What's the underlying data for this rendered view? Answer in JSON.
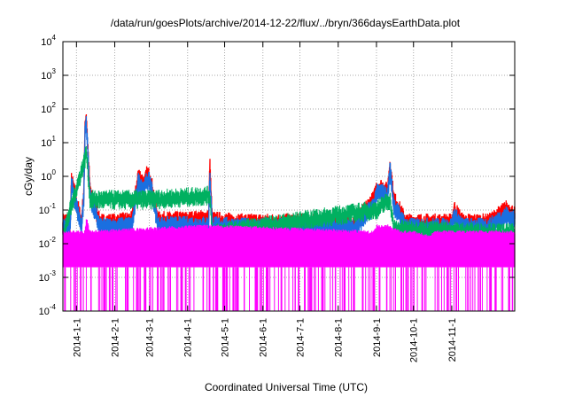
{
  "chart_data": {
    "type": "area",
    "title": "/data/run/goesPlots/archive/2014-12-22/flux/../bryn/366daysEarthData.plot",
    "xlabel": "Coordinated Universal Time (UTC)",
    "ylabel": "cGy/day",
    "yscale": "log",
    "ylim": [
      0.0001,
      10000
    ],
    "xlim": [
      "2013-12-21",
      "2014-12-22"
    ],
    "grid": true,
    "legend": "none",
    "y_ticks": [
      {
        "value": 0.0001,
        "mantissa": "10",
        "exp": "-4"
      },
      {
        "value": 0.001,
        "mantissa": "10",
        "exp": "-3"
      },
      {
        "value": 0.01,
        "mantissa": "10",
        "exp": "-2"
      },
      {
        "value": 0.1,
        "mantissa": "10",
        "exp": "-1"
      },
      {
        "value": 1,
        "mantissa": "10",
        "exp": "0"
      },
      {
        "value": 10,
        "mantissa": "10",
        "exp": "1"
      },
      {
        "value": 100,
        "mantissa": "10",
        "exp": "2"
      },
      {
        "value": 1000,
        "mantissa": "10",
        "exp": "3"
      },
      {
        "value": 10000,
        "mantissa": "10",
        "exp": "4"
      }
    ],
    "x_ticks": [
      "2014-1-1",
      "2014-2-1",
      "2014-3-1",
      "2014-4-1",
      "2014-5-1",
      "2014-6-1",
      "2014-7-1",
      "2014-8-1",
      "2014-9-1",
      "2014-10-1",
      "2014-11-1"
    ],
    "series": [
      {
        "color": "#ff0000",
        "x": [
          "2013-12-21",
          "2013-12-27",
          "2013-12-28",
          "2014-01-05",
          "2014-01-07",
          "2014-01-08",
          "2014-01-09",
          "2014-01-12",
          "2014-01-20",
          "2014-01-31",
          "2014-02-15",
          "2014-02-20",
          "2014-02-25",
          "2014-02-27",
          "2014-03-01",
          "2014-03-02",
          "2014-03-08",
          "2014-04-01",
          "2014-04-18",
          "2014-04-19",
          "2014-04-21",
          "2014-05-15",
          "2014-06-15",
          "2014-07-15",
          "2014-08-15",
          "2014-08-30",
          "2014-09-01",
          "2014-09-05",
          "2014-09-10",
          "2014-09-12",
          "2014-09-15",
          "2014-09-25",
          "2014-10-15",
          "2014-11-01",
          "2014-11-03",
          "2014-11-10",
          "2014-12-01",
          "2014-12-15",
          "2014-12-22"
        ],
        "y": [
          0.06,
          0.07,
          1.1,
          0.06,
          0.5,
          50,
          80,
          0.5,
          0.06,
          0.06,
          0.07,
          1.5,
          0.8,
          1.6,
          1.4,
          1.2,
          0.07,
          0.07,
          0.08,
          3.5,
          0.07,
          0.06,
          0.06,
          0.06,
          0.06,
          0.3,
          0.6,
          0.65,
          0.5,
          3.3,
          0.3,
          0.06,
          0.06,
          0.06,
          0.15,
          0.06,
          0.06,
          0.15,
          0.1
        ]
      },
      {
        "color": "#1a6fe0",
        "x": [
          "2013-12-21",
          "2013-12-27",
          "2013-12-28",
          "2014-01-05",
          "2014-01-07",
          "2014-01-08",
          "2014-01-09",
          "2014-01-12",
          "2014-01-20",
          "2014-01-31",
          "2014-02-15",
          "2014-02-20",
          "2014-02-25",
          "2014-02-27",
          "2014-03-01",
          "2014-03-02",
          "2014-03-08",
          "2014-04-01",
          "2014-04-18",
          "2014-04-19",
          "2014-04-21",
          "2014-05-15",
          "2014-06-15",
          "2014-07-15",
          "2014-08-15",
          "2014-08-30",
          "2014-09-01",
          "2014-09-05",
          "2014-09-10",
          "2014-09-12",
          "2014-09-15",
          "2014-09-25",
          "2014-10-15",
          "2014-11-01",
          "2014-11-03",
          "2014-11-10",
          "2014-12-01",
          "2014-12-15",
          "2014-12-22"
        ],
        "y": [
          0.04,
          0.05,
          0.8,
          0.045,
          0.35,
          35,
          60,
          0.35,
          0.045,
          0.045,
          0.05,
          1.0,
          0.6,
          1.1,
          1.0,
          0.9,
          0.05,
          0.05,
          0.05,
          1.8,
          0.05,
          0.045,
          0.045,
          0.045,
          0.045,
          0.2,
          0.45,
          0.5,
          0.35,
          2.5,
          0.2,
          0.045,
          0.045,
          0.045,
          0.1,
          0.045,
          0.045,
          0.1,
          0.07
        ]
      },
      {
        "color": "#00b060",
        "x": [
          "2013-12-21",
          "2014-01-08",
          "2014-01-09",
          "2014-01-12",
          "2014-02-27",
          "2014-03-02",
          "2014-04-19",
          "2014-04-21",
          "2014-09-01",
          "2014-09-12",
          "2014-09-15",
          "2014-12-22"
        ],
        "y": [
          0.025,
          5,
          8,
          0.3,
          0.3,
          0.3,
          0.4,
          0.03,
          0.15,
          0.3,
          0.04,
          0.03
        ]
      },
      {
        "color": "#ff00ff",
        "x": [
          "2013-12-21",
          "2014-01-08",
          "2014-01-09",
          "2014-01-12",
          "2014-03-01",
          "2014-04-19",
          "2014-08-30",
          "2014-09-01",
          "2014-09-10",
          "2014-09-20",
          "2014-10-01",
          "2014-10-12",
          "2014-10-20",
          "2014-12-22"
        ],
        "y": [
          0.02,
          0.02,
          0.05,
          0.02,
          0.025,
          0.03,
          0.02,
          0.03,
          0.03,
          0.02,
          0.02,
          0.015,
          0.02,
          0.02
        ],
        "floor": 0.002,
        "drops_to": 0.0001
      }
    ]
  }
}
